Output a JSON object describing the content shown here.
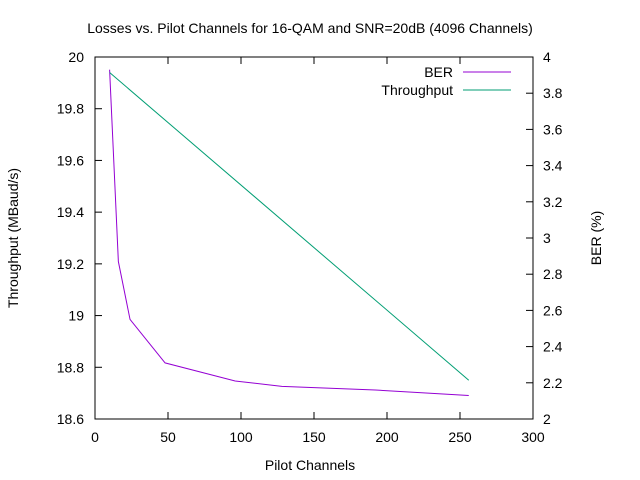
{
  "chart_data": {
    "type": "line",
    "title": "Losses vs. Pilot Channels for 16-QAM and SNR=20dB (4096 Channels)",
    "xlabel": "Pilot Channels",
    "ylabel_left": "Throughput (MBaud/s)",
    "ylabel_right": "BER (%)",
    "xlim": [
      0,
      300
    ],
    "ylim_left": [
      18.6,
      20
    ],
    "ylim_right": [
      2,
      4
    ],
    "x_ticks": [
      "0",
      "50",
      "100",
      "150",
      "200",
      "250",
      "300"
    ],
    "y_ticks_left": [
      "18.6",
      "18.8",
      "19",
      "19.2",
      "19.4",
      "19.6",
      "19.8",
      "20"
    ],
    "y_ticks_right": [
      "2",
      "2.2",
      "2.4",
      "2.6",
      "2.8",
      "3",
      "3.2",
      "3.4",
      "3.6",
      "3.8",
      "4"
    ],
    "grid": false,
    "legend_position": "top-right",
    "series": [
      {
        "name": "BER",
        "axis": "right",
        "color": "#9400d3",
        "x": [
          10,
          16,
          24,
          48,
          96,
          128,
          192,
          256
        ],
        "y": [
          3.93,
          2.87,
          2.55,
          2.31,
          2.21,
          2.18,
          2.16,
          2.13
        ]
      },
      {
        "name": "Throughput",
        "axis": "left",
        "color": "#009e73",
        "x": [
          10,
          256
        ],
        "y": [
          19.94,
          18.75
        ]
      }
    ]
  }
}
